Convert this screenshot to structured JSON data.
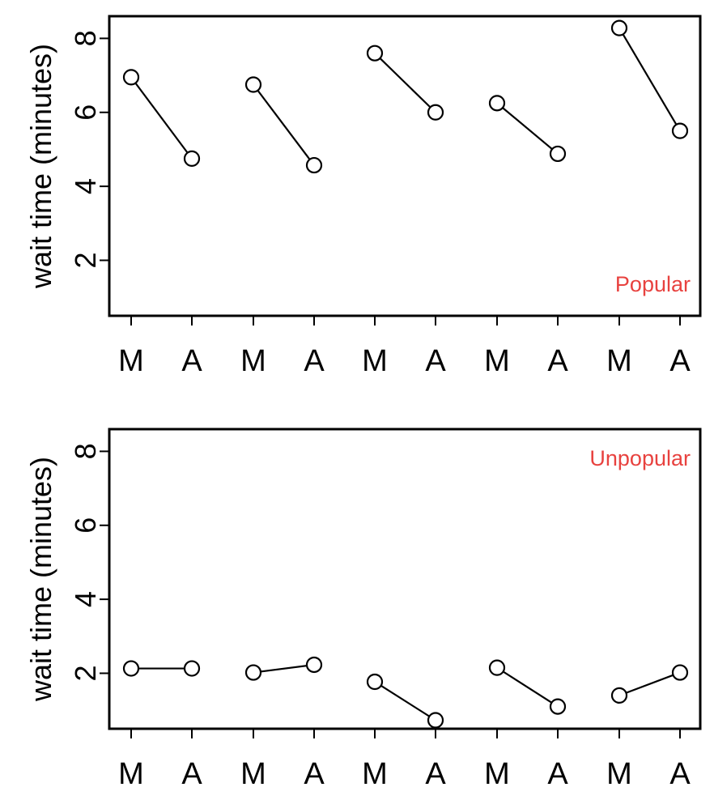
{
  "chart_data": [
    {
      "type": "line",
      "label": "Popular",
      "ylabel": "wait time (minutes)",
      "yticks": [
        2,
        4,
        6,
        8
      ],
      "ylim": [
        0.5,
        8.6
      ],
      "categories": [
        "M",
        "A",
        "M",
        "A",
        "M",
        "A",
        "M",
        "A",
        "M",
        "A"
      ],
      "pairs": [
        {
          "M": 6.95,
          "A": 4.75
        },
        {
          "M": 6.75,
          "A": 4.57
        },
        {
          "M": 7.6,
          "A": 6.0
        },
        {
          "M": 6.25,
          "A": 4.88
        },
        {
          "M": 8.28,
          "A": 5.5
        }
      ]
    },
    {
      "type": "line",
      "label": "Unpopular",
      "ylabel": "wait time (minutes)",
      "yticks": [
        2,
        4,
        6,
        8
      ],
      "ylim": [
        0.5,
        8.6
      ],
      "categories": [
        "M",
        "A",
        "M",
        "A",
        "M",
        "A",
        "M",
        "A",
        "M",
        "A"
      ],
      "pairs": [
        {
          "M": 2.13,
          "A": 2.13
        },
        {
          "M": 2.02,
          "A": 2.23
        },
        {
          "M": 1.77,
          "A": 0.73
        },
        {
          "M": 2.15,
          "A": 1.1
        },
        {
          "M": 1.4,
          "A": 2.02
        }
      ]
    }
  ],
  "colors": {
    "panel_label": "#e8423f",
    "line": "#000000"
  }
}
